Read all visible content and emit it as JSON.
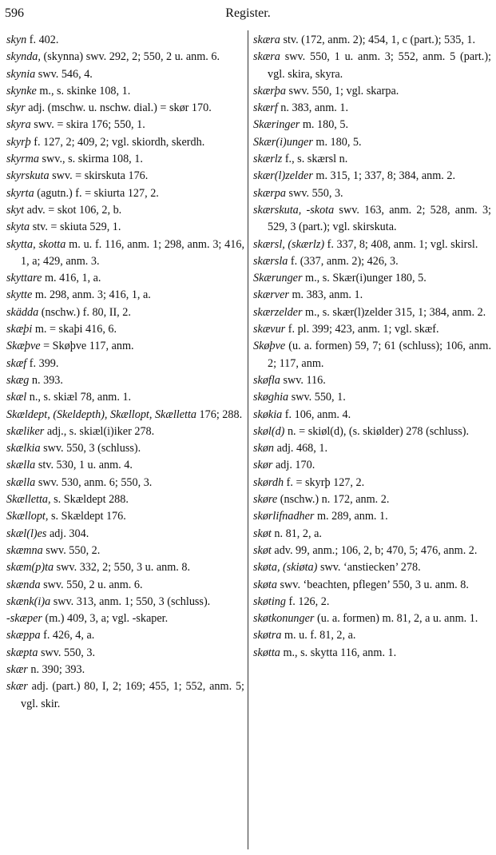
{
  "header": {
    "page_number": "596",
    "title": "Register."
  },
  "columns": [
    [
      {
        "head": "skyn",
        "text": " f. 402."
      },
      {
        "head": "skynda,",
        "text": " (skynna) swv. 292, 2; 550, 2 u. anm. 6."
      },
      {
        "head": "skynia",
        "text": " swv. 546, 4."
      },
      {
        "head": "skynke",
        "text": " m., s. skinke 108, 1."
      },
      {
        "head": "skyr",
        "text": " adj. (mschw. u. nschw. dial.) = skør 170."
      },
      {
        "head": "skyra",
        "text": " swv. = skira 176; 550, 1."
      },
      {
        "head": "skyrþ",
        "text": " f. 127, 2; 409, 2; vgl. skiordh, skerdh."
      },
      {
        "head": "skyrma",
        "text": " swv., s. skirma 108, 1."
      },
      {
        "head": "skyrskuta",
        "text": " swv. = skirskuta 176."
      },
      {
        "head": "skyrta",
        "text": " (agutn.) f. = skiurta 127, 2."
      },
      {
        "head": "skyt",
        "text": " adv. = skot 106, 2, b."
      },
      {
        "head": "skyta",
        "text": " stv. = skiuta 529, 1."
      },
      {
        "head": "skytta, skotta",
        "text": " m. u. f. 116, anm. 1; 298, anm. 3; 416, 1, a; 429, anm. 3."
      },
      {
        "head": "skyttare",
        "text": " m. 416, 1, a."
      },
      {
        "head": "skytte",
        "text": " m. 298, anm. 3; 416, 1, a."
      },
      {
        "head": "skädda",
        "text": " (nschw.) f. 80, II, 2."
      },
      {
        "head": "skæþi",
        "text": " m. = skaþi 416, 6."
      },
      {
        "head": "Skæþve",
        "text": " = Skøþve 117, anm."
      },
      {
        "head": "skæf",
        "text": " f. 399."
      },
      {
        "head": "skæg",
        "text": " n. 393."
      },
      {
        "head": "skæl",
        "text": " n., s. skiæl 78, anm. 1."
      },
      {
        "head": "Skældept, (Skeldepth), Skællopt, Skælletta",
        "text": " 176; 288."
      },
      {
        "head": "skæliker",
        "text": " adj., s. skiæl(i)iker 278."
      },
      {
        "head": "skælkia",
        "text": " swv. 550, 3 (schluss)."
      },
      {
        "head": "skælla",
        "text": " stv. 530, 1 u. anm. 4."
      },
      {
        "head": "skælla",
        "text": " swv. 530, anm. 6; 550, 3."
      },
      {
        "head": "Skælletta,",
        "text": " s. Skældept 288."
      },
      {
        "head": "Skællopt,",
        "text": " s. Skældept 176."
      },
      {
        "head": "skæl(l)es",
        "text": " adj. 304."
      },
      {
        "head": "skæmna",
        "text": " swv. 550, 2."
      },
      {
        "head": "skæm(p)ta",
        "text": " swv. 332, 2; 550, 3 u. anm. 8."
      },
      {
        "head": "skænda",
        "text": " swv. 550, 2 u. anm. 6."
      },
      {
        "head": "skænk(i)a",
        "text": " swv. 313, anm. 1; 550, 3 (schluss)."
      },
      {
        "head": "-skæper",
        "text": " (m.) 409, 3, a; vgl. -skaper."
      },
      {
        "head": "skæppa",
        "text": " f. 426, 4, a."
      },
      {
        "head": "skæpta",
        "text": " swv. 550, 3."
      },
      {
        "head": "skær",
        "text": " n. 390; 393."
      },
      {
        "head": "skær",
        "text": " adj. (part.) 80, I, 2; 169; 455, 1; 552, anm. 5; vgl. skir."
      }
    ],
    [
      {
        "head": "skæra",
        "text": " stv. (172, anm. 2); 454, 1, c (part.); 535, 1."
      },
      {
        "head": "skæra",
        "text": " swv. 550, 1 u. anm. 3; 552, anm. 5 (part.); vgl. skira, skyra."
      },
      {
        "head": "skærþa",
        "text": " swv. 550, 1; vgl. skarpa."
      },
      {
        "head": "skærf",
        "text": " n. 383, anm. 1."
      },
      {
        "head": "Skæringer",
        "text": " m. 180, 5."
      },
      {
        "head": "Skær(i)unger",
        "text": " m. 180, 5."
      },
      {
        "head": "skærlz",
        "text": " f., s. skærsl n."
      },
      {
        "head": "skær(l)zelder",
        "text": " m. 315, 1; 337, 8; 384, anm. 2."
      },
      {
        "head": "skærpa",
        "text": " swv. 550, 3."
      },
      {
        "head": "skærskuta, -skota",
        "text": " swv. 163, anm. 2; 528, anm. 3; 529, 3 (part.); vgl. skirskuta."
      },
      {
        "head": "skærsl, (skærlz)",
        "text": " f. 337, 8; 408, anm. 1; vgl. skirsl."
      },
      {
        "head": "skærsla",
        "text": " f. (337, anm. 2); 426, 3."
      },
      {
        "head": "Skærunger",
        "text": " m., s. Skær(i)unger 180, 5."
      },
      {
        "head": "skærver",
        "text": " m. 383, anm. 1."
      },
      {
        "head": "skærzelder",
        "text": " m., s. skær(l)zelder 315, 1; 384, anm. 2."
      },
      {
        "head": "skævur",
        "text": " f. pl. 399; 423, anm. 1; vgl. skæf."
      },
      {
        "head": "Skøþve",
        "text": " (u. a. formen) 59, 7; 61 (schluss); 106, anm. 2; 117, anm."
      },
      {
        "head": "skøfla",
        "text": " swv. 116."
      },
      {
        "head": "skøghia",
        "text": " swv. 550, 1."
      },
      {
        "head": "skøkia",
        "text": " f. 106, anm. 4."
      },
      {
        "head": "skøl(d)",
        "text": " n. = skiøl(d), (s. skiølder) 278 (schluss)."
      },
      {
        "head": "skøn",
        "text": " adj. 468, 1."
      },
      {
        "head": "skør",
        "text": " adj. 170."
      },
      {
        "head": "skørdh",
        "text": " f. = skyrþ 127, 2."
      },
      {
        "head": "skøre",
        "text": " (nschw.) n. 172, anm. 2."
      },
      {
        "head": "skørlifnadher",
        "text": " m. 289, anm. 1."
      },
      {
        "head": "skøt",
        "text": " n. 81, 2, a."
      },
      {
        "head": "skøt",
        "text": " adv. 99, anm.; 106, 2, b; 470, 5; 476, anm. 2."
      },
      {
        "head": "skøta, (skiøta)",
        "text": " swv. ‘anstiecken’ 278."
      },
      {
        "head": "skøta",
        "text": " swv. ‘beachten, pflegen’ 550, 3 u. anm. 8."
      },
      {
        "head": "skøting",
        "text": " f. 126, 2."
      },
      {
        "head": "skøtkonunger",
        "text": " (u. a. formen) m. 81, 2, a u. anm. 1."
      },
      {
        "head": "skøtra",
        "text": " m. u. f. 81, 2, a."
      },
      {
        "head": "skøtta",
        "text": " m., s. skytta 116, anm. 1."
      }
    ]
  ]
}
